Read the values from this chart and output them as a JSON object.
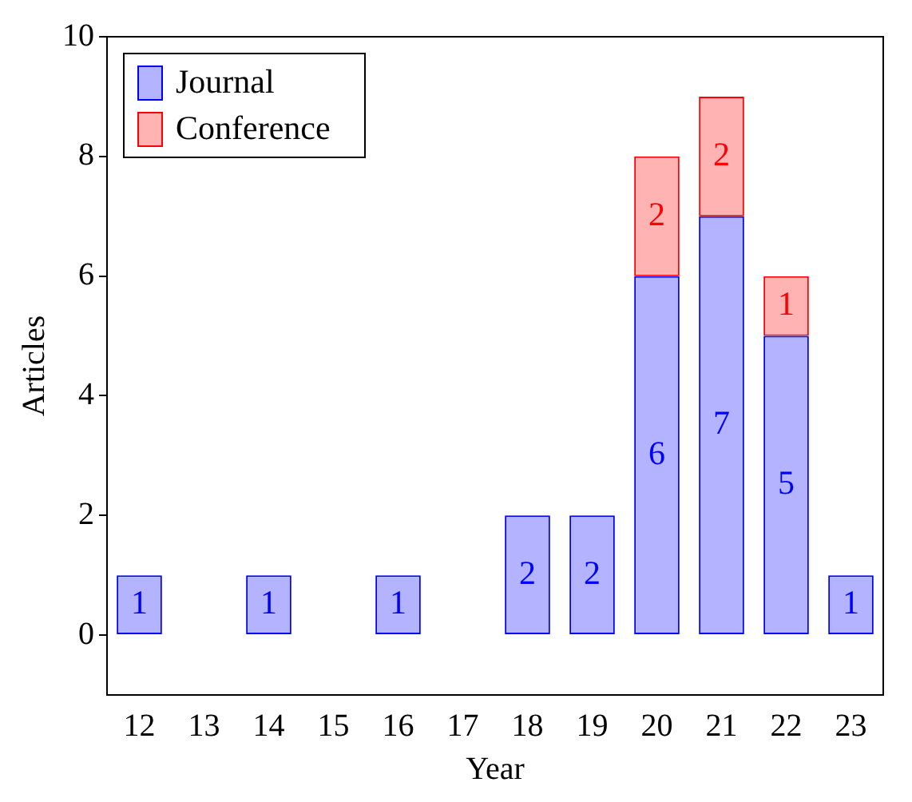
{
  "chart_data": {
    "type": "bar",
    "xlabel": "Year",
    "ylabel": "Articles",
    "categories": [
      "12",
      "13",
      "14",
      "15",
      "16",
      "17",
      "18",
      "19",
      "20",
      "21",
      "22",
      "23"
    ],
    "series": [
      {
        "name": "Journal",
        "color": "#b3b3ff",
        "values": [
          1,
          null,
          1,
          null,
          1,
          null,
          2,
          2,
          6,
          7,
          5,
          1
        ]
      },
      {
        "name": "Conference",
        "color": "#ffb3b3",
        "values": [
          null,
          null,
          null,
          null,
          null,
          null,
          null,
          null,
          2,
          2,
          1,
          null
        ]
      }
    ],
    "stacked": true,
    "ylim": [
      -1,
      10
    ],
    "yticks": [
      0,
      2,
      4,
      6,
      8,
      10
    ],
    "grid": false,
    "legend": "top left",
    "data_labels": true
  }
}
